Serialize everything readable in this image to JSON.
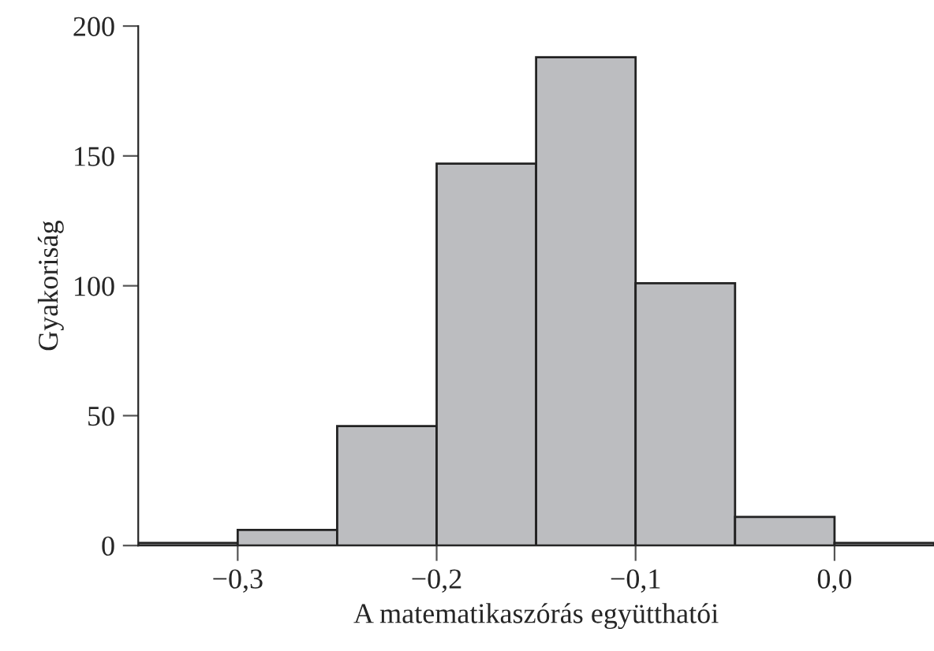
{
  "chart_data": {
    "type": "histogram",
    "xlabel": "A matematikaszórás együtthatói",
    "ylabel": "Gyakoriság",
    "bins": [
      -0.35,
      -0.3,
      -0.25,
      -0.2,
      -0.15,
      -0.1,
      -0.05,
      0.0,
      0.05
    ],
    "values": [
      1,
      6,
      46,
      147,
      188,
      101,
      11,
      1
    ],
    "color": "#bcbdc0",
    "xlim": [
      -0.35,
      0.05
    ],
    "ylim": [
      0,
      200
    ],
    "xticks": [
      {
        "value": -0.3,
        "label": "−0,3"
      },
      {
        "value": -0.2,
        "label": "−0,2"
      },
      {
        "value": -0.1,
        "label": "−0,1"
      },
      {
        "value": 0.0,
        "label": "0,0"
      }
    ],
    "yticks": [
      0,
      50,
      100,
      150,
      200
    ],
    "grid": false
  }
}
